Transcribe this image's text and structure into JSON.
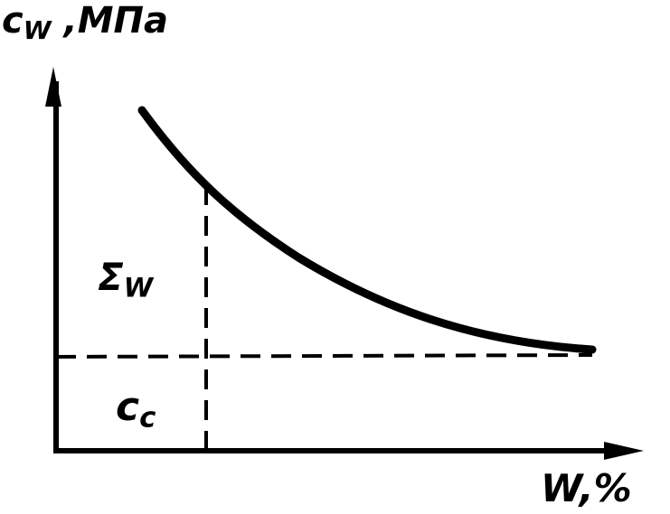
{
  "y_axis": {
    "symbol": "c",
    "subscript": "W",
    "unit": ",МПа"
  },
  "x_axis": {
    "label": "W,%"
  },
  "region_upper": {
    "symbol": "Σ",
    "subscript": "W"
  },
  "region_lower": {
    "symbol": "c",
    "subscript": "c"
  },
  "colors": {
    "ink": "#000000",
    "background": "#ffffff"
  }
}
